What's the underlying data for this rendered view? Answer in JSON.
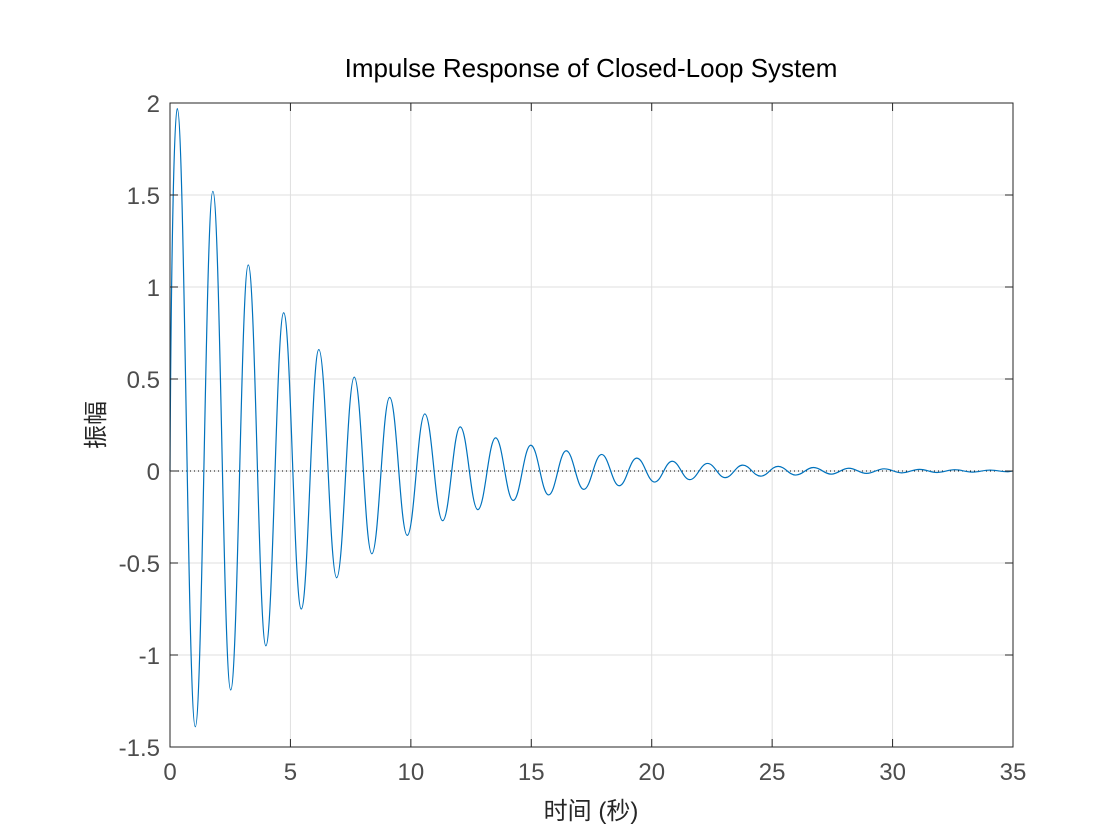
{
  "chart_data": {
    "type": "line",
    "title": "Impulse Response of Closed-Loop System",
    "xlabel": "时间 (秒)",
    "ylabel": "振幅",
    "xlim": [
      0,
      35
    ],
    "ylim": [
      -1.5,
      2
    ],
    "xticks": [
      0,
      5,
      10,
      15,
      20,
      25,
      30,
      35
    ],
    "yticks": [
      -1.5,
      -1,
      -0.5,
      0,
      0.5,
      1,
      1.5,
      2
    ],
    "xtick_labels": [
      "0",
      "5",
      "10",
      "15",
      "20",
      "25",
      "30",
      "35"
    ],
    "ytick_labels": [
      "-1.5",
      "-1",
      "-0.5",
      "0",
      "0.5",
      "1",
      "1.5",
      "2"
    ],
    "grid": true,
    "zero_line": true,
    "series": [
      {
        "color": "#0072BD",
        "x": [
          0,
          0.3,
          1.05,
          1.78,
          2.52,
          3.25,
          3.98,
          4.72,
          5.45,
          6.18,
          6.92,
          7.65,
          8.38,
          9.12,
          9.85,
          10.58,
          11.32,
          12.05,
          12.78,
          13.52,
          14.25,
          14.98,
          15.72,
          16.45,
          17.18,
          17.92,
          18.65,
          19.38,
          20.12,
          20.85,
          21.58,
          22.32,
          23.05,
          23.78,
          24.52,
          25.25,
          25.98,
          26.72,
          27.45,
          28.18,
          28.92,
          29.65,
          30.38,
          31.12,
          31.85,
          32.58,
          33.32,
          34.05,
          34.78,
          35
        ],
        "y": [
          0,
          1.97,
          -1.39,
          1.52,
          -1.19,
          1.12,
          -0.95,
          0.86,
          -0.75,
          0.66,
          -0.58,
          0.51,
          -0.45,
          0.4,
          -0.35,
          0.31,
          -0.27,
          0.24,
          -0.21,
          0.18,
          -0.16,
          0.14,
          -0.13,
          0.11,
          -0.1,
          0.09,
          -0.08,
          0.07,
          -0.06,
          0.053,
          -0.047,
          0.041,
          -0.036,
          0.032,
          -0.028,
          0.025,
          -0.022,
          0.019,
          -0.017,
          0.015,
          -0.013,
          0.012,
          -0.01,
          0.009,
          -0.008,
          0.007,
          -0.006,
          0.005,
          -0.004,
          0
        ]
      }
    ]
  }
}
